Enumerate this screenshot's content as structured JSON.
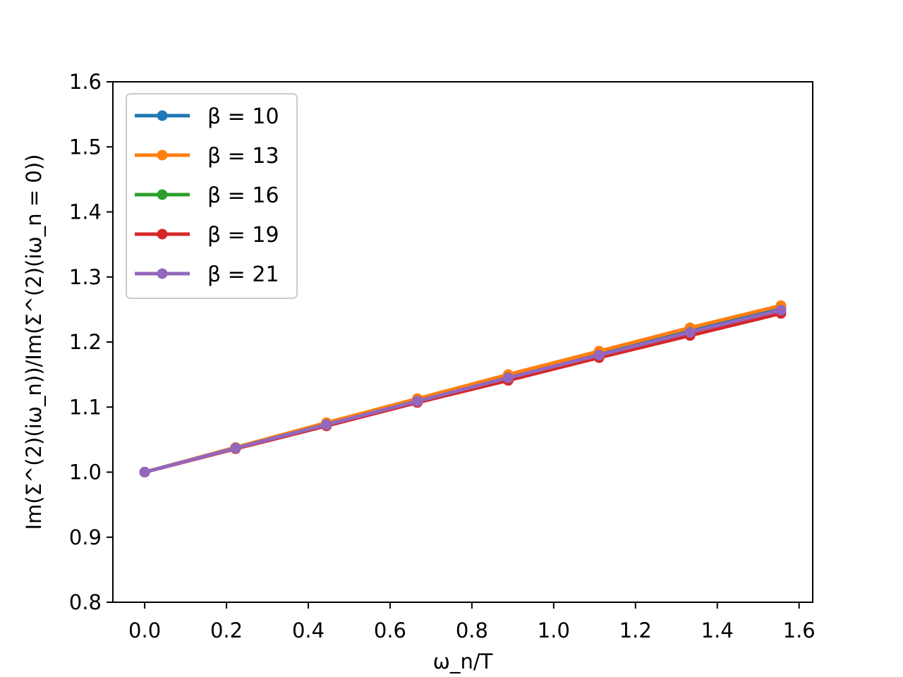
{
  "chart_data": {
    "type": "line",
    "xlabel": "ω_n/T",
    "ylabel": "Im(Σ^(2)(iω_n))/Im(Σ^(2)(iω_n = 0))",
    "xlim": [
      -0.0778,
      1.6333
    ],
    "ylim": [
      0.8,
      1.6
    ],
    "xticks": [
      "0.0",
      "0.2",
      "0.4",
      "0.6",
      "0.8",
      "1.0",
      "1.2",
      "1.4",
      "1.6"
    ],
    "yticks": [
      "0.8",
      "0.9",
      "1.0",
      "1.1",
      "1.2",
      "1.3",
      "1.4",
      "1.5",
      "1.6"
    ],
    "grid": false,
    "legend_position": "upper-left",
    "x": [
      0.0,
      0.2222,
      0.4444,
      0.6667,
      0.8889,
      1.1111,
      1.3333,
      1.5556
    ],
    "series": [
      {
        "name": "β = 10",
        "color": "#1f77b4",
        "values": [
          1.0,
          1.037,
          1.074,
          1.111,
          1.148,
          1.183,
          1.218,
          1.252
        ]
      },
      {
        "name": "β = 13",
        "color": "#ff7f0e",
        "values": [
          1.0,
          1.038,
          1.076,
          1.113,
          1.15,
          1.186,
          1.222,
          1.256
        ]
      },
      {
        "name": "β = 16",
        "color": "#2ca02c",
        "values": [
          1.0,
          1.037,
          1.073,
          1.109,
          1.145,
          1.18,
          1.215,
          1.248
        ]
      },
      {
        "name": "β = 19",
        "color": "#d62728",
        "values": [
          1.0,
          1.036,
          1.071,
          1.107,
          1.141,
          1.176,
          1.21,
          1.244
        ]
      },
      {
        "name": "β = 21",
        "color": "#9467bd",
        "values": [
          1.0,
          1.037,
          1.073,
          1.109,
          1.145,
          1.18,
          1.215,
          1.249
        ]
      }
    ]
  }
}
